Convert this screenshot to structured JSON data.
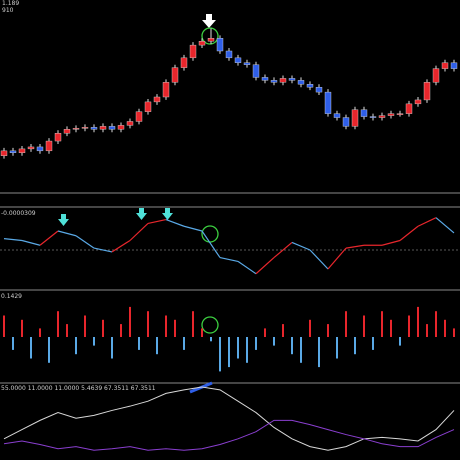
{
  "chart_data": [
    {
      "type": "candlestick",
      "title": "1.189",
      "subtitle": "910",
      "up_color": "#e8262c",
      "down_color": "#2f5fe8",
      "wick_color": "#dddddd",
      "xlim": [
        0,
        50
      ],
      "ylim": [
        0,
        190
      ],
      "open": [
        35,
        40,
        38,
        42,
        44,
        40,
        50,
        58,
        62,
        63,
        64,
        62,
        65,
        62,
        66,
        70,
        80,
        90,
        95,
        110,
        125,
        135,
        148,
        152,
        155,
        142,
        135,
        130,
        128,
        115,
        112,
        110,
        114,
        112,
        108,
        105,
        100,
        78,
        74,
        65,
        82,
        75,
        74,
        76,
        78,
        78,
        88,
        92,
        110,
        124,
        130
      ],
      "close": [
        40,
        38,
        42,
        44,
        40,
        50,
        58,
        62,
        63,
        64,
        62,
        65,
        62,
        66,
        70,
        80,
        90,
        95,
        110,
        125,
        135,
        148,
        152,
        155,
        142,
        135,
        130,
        128,
        115,
        112,
        110,
        114,
        112,
        108,
        105,
        100,
        78,
        74,
        65,
        82,
        75,
        74,
        76,
        78,
        78,
        88,
        92,
        110,
        124,
        130,
        124
      ],
      "high": [
        43,
        43,
        45,
        47,
        47,
        53,
        61,
        65,
        66,
        67,
        67,
        68,
        68,
        69,
        73,
        83,
        93,
        98,
        113,
        128,
        138,
        151,
        155,
        165,
        158,
        145,
        138,
        133,
        131,
        118,
        115,
        117,
        117,
        115,
        111,
        108,
        103,
        81,
        77,
        85,
        85,
        78,
        79,
        81,
        81,
        91,
        95,
        113,
        127,
        133,
        133
      ],
      "low": [
        32,
        35,
        35,
        39,
        37,
        37,
        47,
        55,
        59,
        60,
        59,
        59,
        59,
        59,
        63,
        67,
        77,
        87,
        92,
        107,
        122,
        132,
        145,
        149,
        139,
        132,
        127,
        125,
        112,
        109,
        107,
        107,
        109,
        105,
        102,
        97,
        75,
        71,
        62,
        62,
        72,
        71,
        71,
        73,
        75,
        75,
        85,
        89,
        107,
        121,
        121
      ]
    },
    {
      "type": "line",
      "title": "-0.0000309",
      "zero_line": true,
      "xlim": [
        0,
        50
      ],
      "ylim": [
        -0.4,
        0.4
      ],
      "x": [
        0,
        2,
        4,
        6,
        8,
        10,
        12,
        14,
        16,
        18,
        20,
        22,
        24,
        26,
        28,
        30,
        32,
        34,
        36,
        38,
        40,
        42,
        44,
        46,
        48,
        50
      ],
      "series": [
        {
          "up_color": "#e8262c",
          "down_color": "#5aa9e6",
          "values": [
            0.12,
            0.1,
            0.05,
            0.2,
            0.15,
            0.02,
            -0.02,
            0.1,
            0.28,
            0.32,
            0.25,
            0.2,
            -0.08,
            -0.12,
            -0.25,
            -0.08,
            0.08,
            0,
            -0.2,
            0.02,
            0.05,
            0.05,
            0.1,
            0.25,
            0.34,
            0.18
          ]
        }
      ]
    },
    {
      "type": "bar",
      "title": "0.1429",
      "up_color": "#e8262c",
      "down_color": "#5aa9e6",
      "xlim": [
        0,
        50
      ],
      "ylim": [
        -1,
        1
      ],
      "values": [
        0.5,
        -0.3,
        0.4,
        -0.5,
        0.2,
        -0.6,
        0.6,
        0.3,
        -0.4,
        0.5,
        -0.2,
        0.4,
        -0.5,
        0.3,
        0.7,
        -0.3,
        0.6,
        -0.4,
        0.5,
        0.4,
        -0.3,
        0.6,
        0.2,
        -0.1,
        -0.8,
        -0.7,
        -0.5,
        -0.6,
        -0.3,
        0.2,
        -0.2,
        0.3,
        -0.4,
        -0.6,
        0.4,
        -0.7,
        0.3,
        -0.5,
        0.6,
        -0.4,
        0.5,
        -0.3,
        0.6,
        0.4,
        -0.2,
        0.5,
        0.7,
        0.3,
        0.6,
        0.4,
        0.2
      ]
    },
    {
      "type": "line",
      "title": "55.0000 11.0000 11.0000 5.4639 67.3511 67.3511",
      "xlim": [
        0,
        50
      ],
      "ylim": [
        0,
        100
      ],
      "x": [
        0,
        2,
        4,
        6,
        8,
        10,
        12,
        14,
        16,
        18,
        20,
        22,
        24,
        26,
        28,
        30,
        32,
        34,
        36,
        38,
        40,
        42,
        44,
        46,
        48,
        50
      ],
      "series": [
        {
          "color": "#d8d8d8",
          "values": [
            27,
            40,
            53,
            64,
            56,
            60,
            67,
            73,
            80,
            91,
            96,
            100,
            96,
            80,
            64,
            43,
            27,
            16,
            11,
            16,
            27,
            29,
            27,
            24,
            40,
            67
          ]
        },
        {
          "color": "#8a3fd0",
          "values": [
            20,
            24,
            19,
            13,
            16,
            11,
            13,
            16,
            11,
            13,
            11,
            13,
            19,
            27,
            37,
            53,
            53,
            47,
            40,
            33,
            27,
            20,
            16,
            16,
            29,
            40
          ]
        }
      ]
    }
  ]
}
